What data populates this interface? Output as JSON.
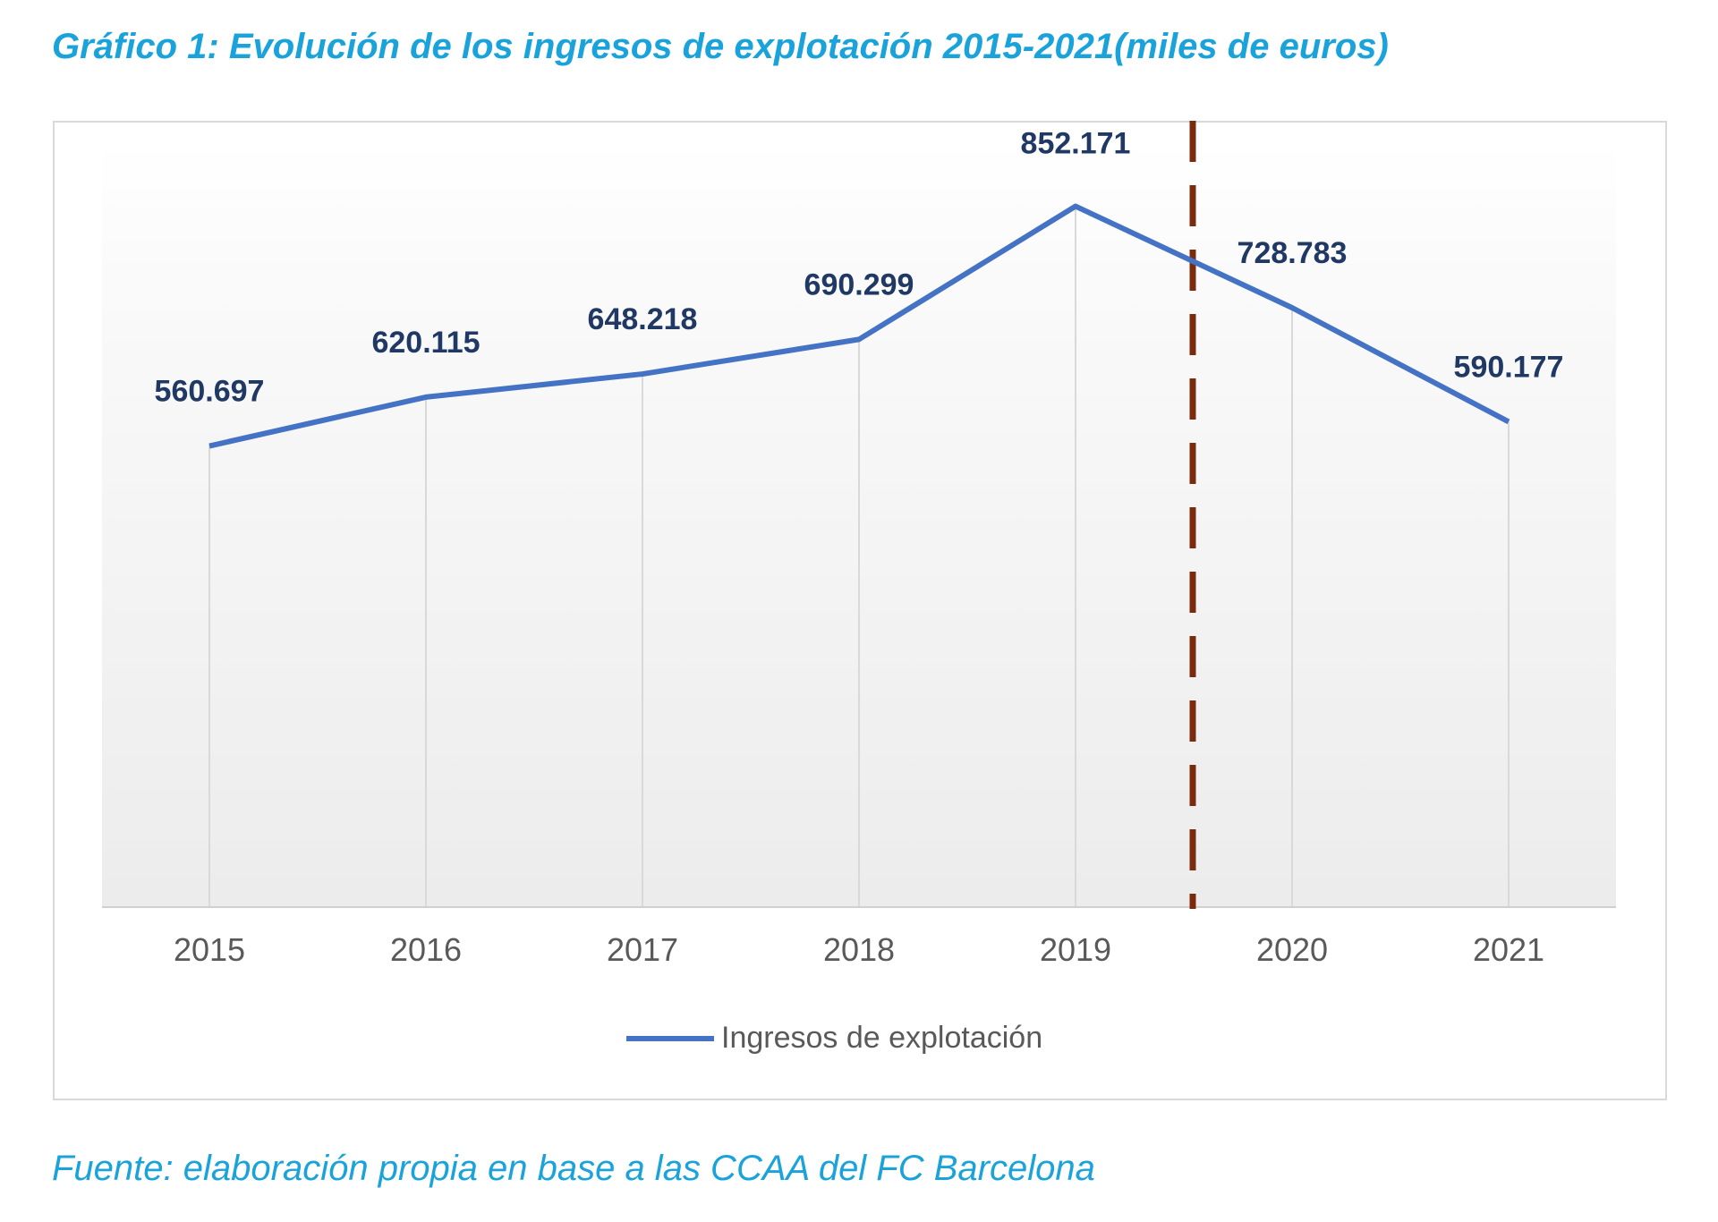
{
  "title": "Gráfico 1: Evolución de los ingresos de explotación 2015-2021(miles de euros)",
  "source": "Fuente: elaboración propia en base a las CCAA del FC Barcelona",
  "colors": {
    "title": "#1aa3db",
    "line": "#4472c4",
    "labels": "#1f3864",
    "divider": "#7b2a0e"
  },
  "chart_data": {
    "type": "line",
    "title": "Gráfico 1: Evolución de los ingresos de explotación 2015-2021(miles de euros)",
    "xlabel": "",
    "ylabel": "",
    "categories": [
      "2015",
      "2016",
      "2017",
      "2018",
      "2019",
      "2020",
      "2021"
    ],
    "series": [
      {
        "name": "Ingresos de explotación",
        "values": [
          560697,
          620115,
          648218,
          690299,
          852171,
          728783,
          590177
        ],
        "labels": [
          "560.697",
          "620.115",
          "648.218",
          "690.299",
          "852.171",
          "728.783",
          "590.177"
        ]
      }
    ],
    "ylim": [
      0,
      930000
    ],
    "grid": "vertical",
    "legend": "bottom-center",
    "annotations": [
      {
        "type": "vertical-dashed-line",
        "between": [
          "2019",
          "2020"
        ]
      }
    ]
  }
}
